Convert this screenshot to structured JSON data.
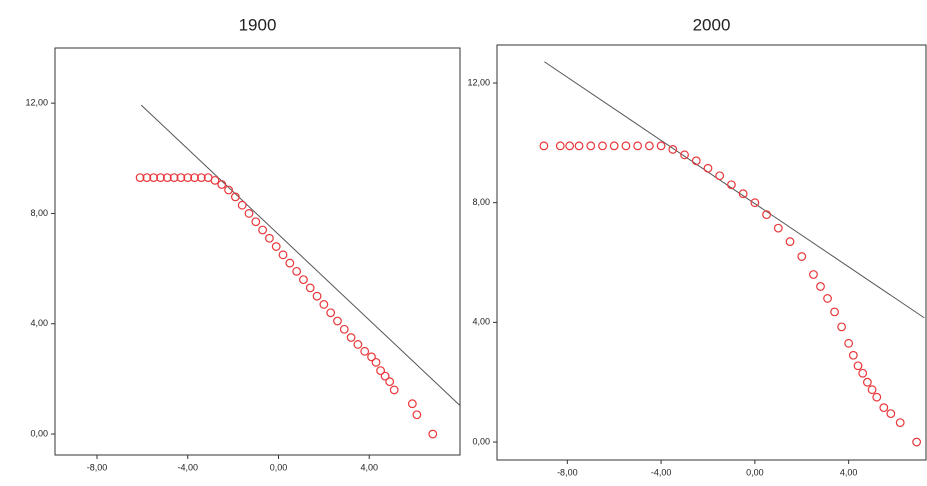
{
  "chart_data": [
    {
      "type": "scatter",
      "title": "1900",
      "x": [
        -6.1,
        -5.8,
        -5.5,
        -5.2,
        -4.9,
        -4.6,
        -4.3,
        -4.0,
        -3.7,
        -3.4,
        -3.1,
        -2.8,
        -2.5,
        -2.2,
        -1.9,
        -1.6,
        -1.3,
        -1.0,
        -0.7,
        -0.4,
        -0.1,
        0.2,
        0.5,
        0.8,
        1.1,
        1.4,
        1.7,
        2.0,
        2.3,
        2.6,
        2.9,
        3.2,
        3.5,
        3.8,
        4.1,
        4.3,
        4.5,
        4.7,
        4.9,
        5.1,
        5.9,
        6.1,
        6.8
      ],
      "values": [
        9.3,
        9.3,
        9.3,
        9.3,
        9.3,
        9.3,
        9.3,
        9.3,
        9.3,
        9.3,
        9.3,
        9.2,
        9.05,
        8.85,
        8.6,
        8.3,
        8.0,
        7.7,
        7.4,
        7.1,
        6.8,
        6.5,
        6.2,
        5.9,
        5.6,
        5.3,
        5.0,
        4.7,
        4.4,
        4.1,
        3.8,
        3.5,
        3.25,
        3.0,
        2.8,
        2.6,
        2.3,
        2.1,
        1.9,
        1.6,
        1.1,
        0.7,
        0.0
      ],
      "color": "#e8363a",
      "fit_line": {
        "x": [
          -6.05,
          7.98
        ],
        "values": [
          11.93,
          1.05
        ],
        "color": "#555555"
      },
      "xlim": [
        -9.85,
        8.0
      ],
      "ylim": [
        -0.76,
        14.0
      ],
      "xticks": [
        {
          "value": -8,
          "label": "-8,00"
        },
        {
          "value": -4,
          "label": "-4,00"
        },
        {
          "value": 0,
          "label": "0,00"
        },
        {
          "value": 4,
          "label": "4,00"
        }
      ],
      "yticks": [
        {
          "value": 0,
          "label": "0,00"
        },
        {
          "value": 4,
          "label": "4,00"
        },
        {
          "value": 8,
          "label": "8,00"
        },
        {
          "value": 12,
          "label": "12,00"
        }
      ]
    },
    {
      "type": "scatter",
      "title": "2000",
      "x": [
        -9.0,
        -8.3,
        -7.9,
        -7.5,
        -7.0,
        -6.5,
        -6.0,
        -5.5,
        -5.0,
        -4.5,
        -4.0,
        -3.5,
        -3.0,
        -2.5,
        -2.0,
        -1.5,
        -1.0,
        -0.5,
        0.0,
        0.5,
        1.0,
        1.5,
        2.0,
        2.5,
        2.8,
        3.1,
        3.4,
        3.7,
        4.0,
        4.2,
        4.4,
        4.6,
        4.8,
        5.0,
        5.2,
        5.5,
        5.8,
        6.2,
        6.9
      ],
      "values": [
        9.9,
        9.9,
        9.9,
        9.9,
        9.9,
        9.9,
        9.9,
        9.9,
        9.9,
        9.9,
        9.9,
        9.78,
        9.6,
        9.4,
        9.15,
        8.9,
        8.6,
        8.3,
        8.0,
        7.6,
        7.15,
        6.7,
        6.2,
        5.6,
        5.2,
        4.8,
        4.35,
        3.85,
        3.3,
        2.9,
        2.55,
        2.3,
        2.0,
        1.75,
        1.5,
        1.15,
        0.95,
        0.65,
        0.0
      ],
      "color": "#e8363a",
      "fit_line": {
        "x": [
          -8.98,
          7.23
        ],
        "values": [
          12.71,
          4.15
        ],
        "color": "#555555"
      },
      "xlim": [
        -11.0,
        7.3
      ],
      "ylim": [
        -0.6,
        13.27
      ],
      "xticks": [
        {
          "value": -8,
          "label": "-8,00"
        },
        {
          "value": -4,
          "label": "-4,00"
        },
        {
          "value": 0,
          "label": "0,00"
        },
        {
          "value": 4,
          "label": "4,00"
        }
      ],
      "yticks": [
        {
          "value": 0,
          "label": "0,00"
        },
        {
          "value": 4,
          "label": "4,00"
        },
        {
          "value": 8,
          "label": "8,00"
        },
        {
          "value": 12,
          "label": "12,00"
        }
      ]
    }
  ]
}
